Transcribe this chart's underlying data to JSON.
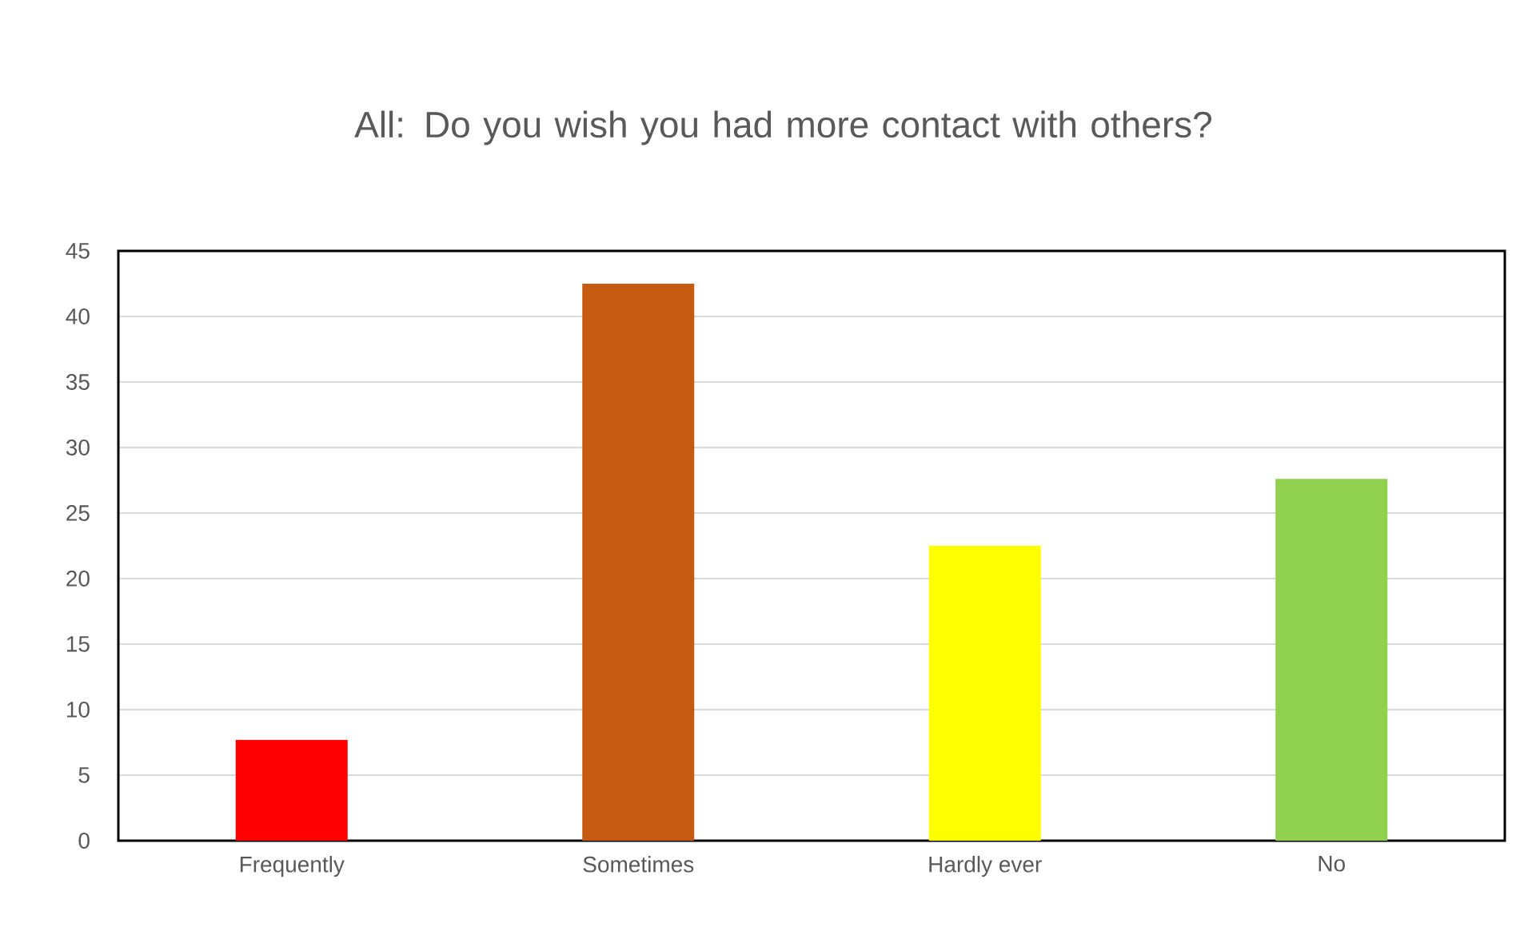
{
  "chart_data": {
    "type": "bar",
    "title": "All: Do you wish you had more contact with others?",
    "categories": [
      "Frequently",
      "Sometimes",
      "Hardly ever",
      "No"
    ],
    "values": [
      7.7,
      42.5,
      22.5,
      27.6
    ],
    "colors": [
      "#ff0000",
      "#c55a11",
      "#ffff00",
      "#92d050"
    ],
    "ylim": [
      0,
      45
    ],
    "yticks": [
      0,
      5,
      10,
      15,
      20,
      25,
      30,
      35,
      40,
      45
    ],
    "grid": "y"
  }
}
